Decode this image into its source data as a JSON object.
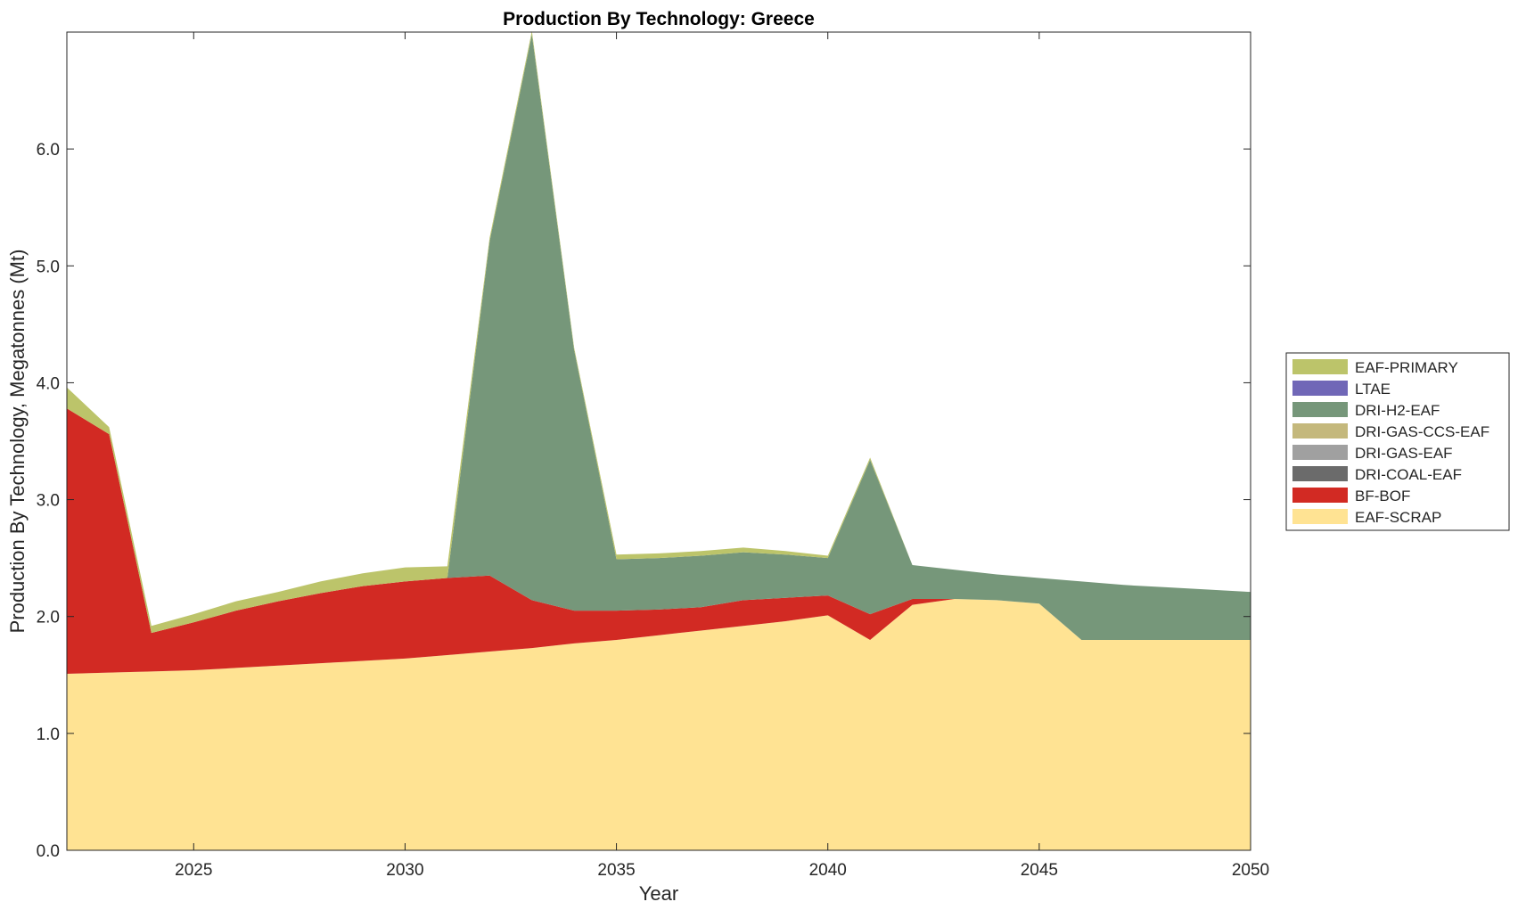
{
  "chart_data": {
    "type": "area",
    "title": "Production By Technology: Greece",
    "xlabel": "Year",
    "ylabel": "Production By Technology, Megatonnes (Mt)",
    "xlim": [
      2022,
      2050
    ],
    "ylim": [
      0,
      7.0
    ],
    "xticks": [
      2025,
      2030,
      2035,
      2040,
      2045,
      2050
    ],
    "yticks": [
      0.0,
      1.0,
      2.0,
      3.0,
      4.0,
      5.0,
      6.0
    ],
    "ytick_labels": [
      "0.0",
      "1.0",
      "2.0",
      "3.0",
      "4.0",
      "5.0",
      "6.0"
    ],
    "grid": false,
    "legend_position": "right",
    "x": [
      2022,
      2023,
      2024,
      2025,
      2026,
      2027,
      2028,
      2029,
      2030,
      2031,
      2032,
      2033,
      2034,
      2035,
      2036,
      2037,
      2038,
      2039,
      2040,
      2041,
      2042,
      2043,
      2044,
      2045,
      2046,
      2047,
      2048,
      2049,
      2050
    ],
    "series": [
      {
        "name": "EAF-SCRAP",
        "color": "#FFE393",
        "values": [
          1.51,
          1.52,
          1.53,
          1.54,
          1.56,
          1.58,
          1.6,
          1.62,
          1.64,
          1.67,
          1.7,
          1.73,
          1.77,
          1.8,
          1.84,
          1.88,
          1.92,
          1.96,
          2.01,
          1.8,
          2.1,
          2.15,
          2.14,
          2.11,
          1.8,
          1.8,
          1.8,
          1.8,
          1.8
        ]
      },
      {
        "name": "BF-BOF",
        "color": "#D22A23",
        "values": [
          2.27,
          2.04,
          0.33,
          0.41,
          0.49,
          0.55,
          0.6,
          0.64,
          0.66,
          0.66,
          0.65,
          0.41,
          0.28,
          0.25,
          0.22,
          0.2,
          0.22,
          0.2,
          0.17,
          0.22,
          0.05,
          0.0,
          0.0,
          0.0,
          0.0,
          0.0,
          0.0,
          0.0,
          0.0
        ]
      },
      {
        "name": "DRI-COAL-EAF",
        "color": "#6B6B6B",
        "values": [
          0,
          0,
          0,
          0,
          0,
          0,
          0,
          0,
          0,
          0,
          0,
          0,
          0,
          0,
          0,
          0,
          0,
          0,
          0,
          0,
          0,
          0,
          0,
          0,
          0,
          0,
          0,
          0,
          0
        ]
      },
      {
        "name": "DRI-GAS-EAF",
        "color": "#A0A0A0",
        "values": [
          0,
          0,
          0,
          0,
          0,
          0,
          0,
          0,
          0,
          0,
          0,
          0,
          0,
          0,
          0,
          0,
          0,
          0,
          0,
          0,
          0,
          0,
          0,
          0,
          0,
          0,
          0,
          0,
          0
        ]
      },
      {
        "name": "DRI-GAS-CCS-EAF",
        "color": "#C4B87C",
        "values": [
          0,
          0,
          0,
          0,
          0,
          0,
          0,
          0,
          0,
          0,
          0,
          0,
          0,
          0,
          0,
          0,
          0,
          0,
          0,
          0,
          0,
          0,
          0,
          0,
          0,
          0,
          0,
          0,
          0
        ]
      },
      {
        "name": "DRI-H2-EAF",
        "color": "#76977A",
        "values": [
          0,
          0,
          0,
          0,
          0,
          0,
          0,
          0,
          0,
          0.0,
          2.86,
          4.84,
          2.23,
          0.44,
          0.44,
          0.44,
          0.41,
          0.37,
          0.32,
          1.32,
          0.29,
          0.25,
          0.22,
          0.22,
          0.5,
          0.47,
          0.45,
          0.43,
          0.41
        ]
      },
      {
        "name": "LTAE",
        "color": "#7067B7",
        "values": [
          0,
          0,
          0,
          0,
          0,
          0,
          0,
          0,
          0,
          0,
          0,
          0,
          0,
          0,
          0,
          0,
          0,
          0,
          0,
          0,
          0,
          0,
          0,
          0,
          0,
          0,
          0,
          0,
          0
        ]
      },
      {
        "name": "EAF-PRIMARY",
        "color": "#BCC46A",
        "values": [
          0.18,
          0.06,
          0.06,
          0.07,
          0.08,
          0.08,
          0.1,
          0.11,
          0.12,
          0.1,
          0.03,
          0.03,
          0.02,
          0.04,
          0.04,
          0.04,
          0.04,
          0.03,
          0.02,
          0.02,
          0.0,
          0.0,
          0.0,
          0.0,
          0.0,
          0.0,
          0.0,
          0.0,
          0.0
        ]
      }
    ],
    "legend_order": [
      "EAF-PRIMARY",
      "LTAE",
      "DRI-H2-EAF",
      "DRI-GAS-CCS-EAF",
      "DRI-GAS-EAF",
      "DRI-COAL-EAF",
      "BF-BOF",
      "EAF-SCRAP"
    ]
  }
}
